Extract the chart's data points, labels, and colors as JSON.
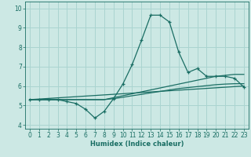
{
  "xlabel": "Humidex (Indice chaleur)",
  "ylabel": "",
  "bg_color": "#cce8e4",
  "grid_color": "#aad4d0",
  "line_color": "#1a6e64",
  "xlim": [
    -0.5,
    23.5
  ],
  "ylim": [
    3.8,
    10.35
  ],
  "xticks": [
    0,
    1,
    2,
    3,
    4,
    5,
    6,
    7,
    8,
    9,
    10,
    11,
    12,
    13,
    14,
    15,
    16,
    17,
    18,
    19,
    20,
    21,
    22,
    23
  ],
  "yticks": [
    4,
    5,
    6,
    7,
    8,
    9,
    10
  ],
  "main_x": [
    0,
    1,
    2,
    3,
    4,
    5,
    6,
    7,
    8,
    9,
    10,
    11,
    12,
    13,
    14,
    15,
    16,
    17,
    18,
    19,
    20,
    21,
    22,
    23
  ],
  "main_y": [
    5.3,
    5.3,
    5.3,
    5.3,
    5.2,
    5.1,
    4.8,
    4.35,
    4.7,
    5.35,
    6.1,
    7.1,
    8.35,
    9.65,
    9.65,
    9.3,
    7.75,
    6.7,
    6.9,
    6.5,
    6.5,
    6.5,
    6.4,
    5.95
  ],
  "line2_x": [
    0,
    1,
    2,
    3,
    4,
    5,
    6,
    7,
    8,
    9,
    10,
    11,
    12,
    13,
    14,
    15,
    16,
    17,
    18,
    19,
    20,
    21,
    22,
    23
  ],
  "line2_y": [
    5.3,
    5.3,
    5.3,
    5.3,
    5.3,
    5.3,
    5.3,
    5.3,
    5.3,
    5.4,
    5.5,
    5.6,
    5.7,
    5.8,
    5.9,
    6.0,
    6.1,
    6.2,
    6.3,
    6.4,
    6.5,
    6.55,
    6.6,
    6.6
  ],
  "line3_x": [
    0,
    1,
    2,
    3,
    4,
    5,
    6,
    7,
    8,
    9,
    10,
    11,
    12,
    13,
    14,
    15,
    16,
    17,
    18,
    19,
    20,
    21,
    22,
    23
  ],
  "line3_y": [
    5.3,
    5.3,
    5.3,
    5.3,
    5.3,
    5.3,
    5.3,
    5.3,
    5.3,
    5.35,
    5.42,
    5.5,
    5.57,
    5.65,
    5.72,
    5.8,
    5.87,
    5.92,
    5.97,
    6.02,
    6.07,
    6.1,
    6.12,
    6.12
  ],
  "line4_x": [
    0,
    23
  ],
  "line4_y": [
    5.3,
    6.0
  ]
}
